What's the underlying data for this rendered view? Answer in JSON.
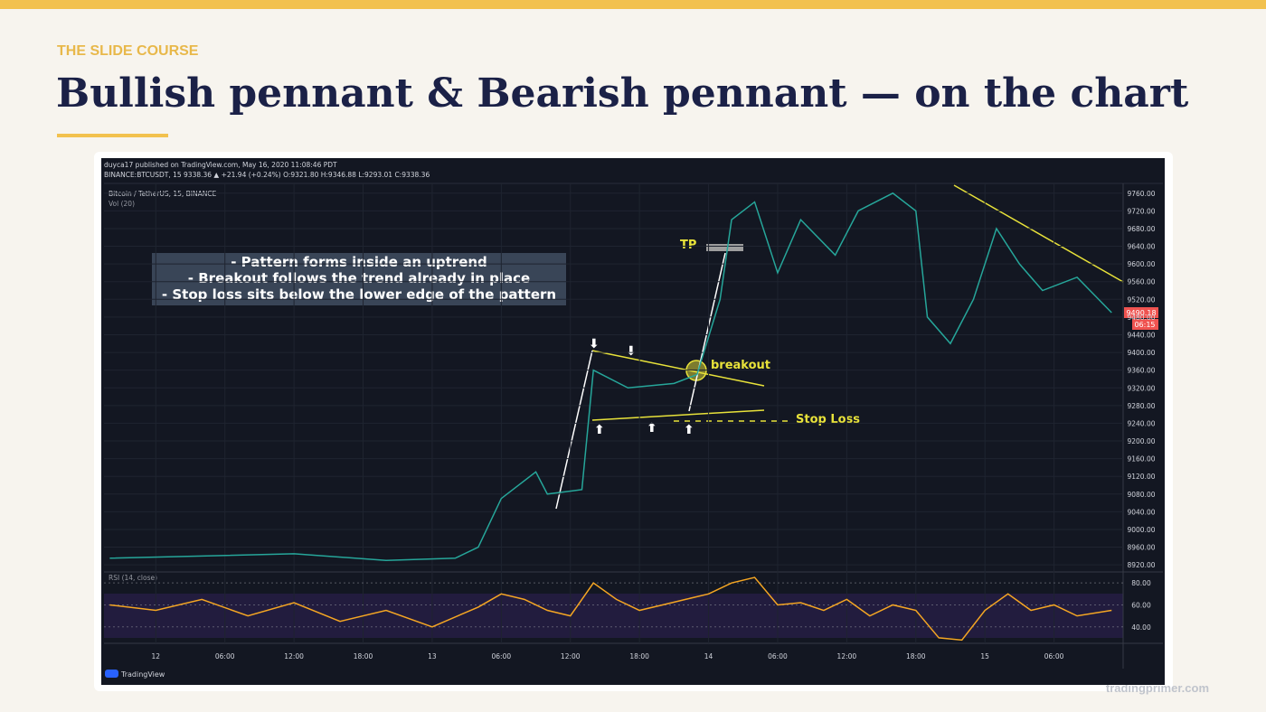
{
  "header": {
    "kicker": "THE SLIDE COURSE",
    "title": "Bullish pennant & Bearish pennant — on the chart"
  },
  "footer": "tradingprimer.com",
  "screenshot": {
    "published": "duyca17 published on TradingView.com, May 16, 2020 11:08:46 PDT",
    "quote": "BINANCE:BTCUSDT, 15  9338.36 ▲ +21.94 (+0.24%) O:9321.80 H:9346.88 L:9293.01 C:9338.36",
    "symbol": "Bitcoin / TetherUS, 15, BINANCE",
    "volume_label": "Vol (20)",
    "rsi_label": "RSI (14, close)",
    "brand": "TradingView",
    "last_price": "9490.18",
    "countdown": "06:15",
    "notes": [
      "- Pattern forms inside an uptrend",
      "- Breakout follows the trend already in place",
      "- Stop loss sits below the lower edge of the pattern"
    ],
    "tp": "TP",
    "breakout": "breakout",
    "stop_loss": "Stop Loss"
  },
  "chart_data": [
    {
      "type": "line",
      "color": "#26a69a",
      "grid": true,
      "x": [
        -4,
        4,
        12,
        20,
        26,
        28,
        30,
        33,
        34,
        37,
        38,
        41,
        45,
        47,
        49,
        50,
        52,
        54,
        56,
        59,
        61,
        64,
        66,
        67,
        69,
        71,
        73,
        75,
        77,
        80,
        83
      ],
      "values": [
        8935,
        8940,
        8945,
        8930,
        8935,
        8960,
        9070,
        9130,
        9080,
        9090,
        9360,
        9320,
        9330,
        9350,
        9520,
        9700,
        9740,
        9580,
        9700,
        9620,
        9720,
        9760,
        9720,
        9480,
        9420,
        9520,
        9680,
        9600,
        9540,
        9570,
        9490
      ],
      "xlim": [
        -4.5,
        84
      ],
      "ylim": [
        8906,
        9782
      ],
      "xticks": [
        {
          "value": 0,
          "label": "12"
        },
        {
          "value": 6,
          "label": "06:00"
        },
        {
          "value": 12,
          "label": "12:00"
        },
        {
          "value": 18,
          "label": "18:00"
        },
        {
          "value": 24,
          "label": "13"
        },
        {
          "value": 30,
          "label": "06:00"
        },
        {
          "value": 36,
          "label": "12:00"
        },
        {
          "value": 42,
          "label": "18:00"
        },
        {
          "value": 48,
          "label": "14"
        },
        {
          "value": 54,
          "label": "06:00"
        },
        {
          "value": 60,
          "label": "12:00"
        },
        {
          "value": 66,
          "label": "18:00"
        },
        {
          "value": 72,
          "label": "15"
        },
        {
          "value": 78,
          "label": "06:00"
        }
      ],
      "yticks": [
        {
          "value": 9760,
          "label": "9760.00"
        },
        {
          "value": 9720,
          "label": "9720.00"
        },
        {
          "value": 9680,
          "label": "9680.00"
        },
        {
          "value": 9640,
          "label": "9640.00"
        },
        {
          "value": 9600,
          "label": "9600.00"
        },
        {
          "value": 9560,
          "label": "9560.00"
        },
        {
          "value": 9520,
          "label": "9520.00"
        },
        {
          "value": 9480,
          "label": "9480.00"
        },
        {
          "value": 9440,
          "label": "9440.00"
        },
        {
          "value": 9400,
          "label": "9400.00"
        },
        {
          "value": 9360,
          "label": "9360.00"
        },
        {
          "value": 9320,
          "label": "9320.00"
        },
        {
          "value": 9280,
          "label": "9280.00"
        },
        {
          "value": 9240,
          "label": "9240.00"
        },
        {
          "value": 9200,
          "label": "9200.00"
        },
        {
          "value": 9160,
          "label": "9160.00"
        },
        {
          "value": 9120,
          "label": "9120.00"
        },
        {
          "value": 9080,
          "label": "9080.00"
        },
        {
          "value": 9040,
          "label": "9040.00"
        },
        {
          "value": 9000,
          "label": "9000.00"
        },
        {
          "value": 8960,
          "label": "8960.00"
        },
        {
          "value": 8920,
          "label": "8920.00"
        }
      ]
    },
    {
      "type": "line",
      "color": "#f5a623",
      "x": [
        -4,
        0,
        4,
        8,
        12,
        16,
        20,
        24,
        28,
        30,
        32,
        34,
        36,
        38,
        40,
        42,
        44,
        46,
        48,
        50,
        52,
        54,
        56,
        58,
        60,
        62,
        64,
        66,
        68,
        70,
        72,
        74,
        76,
        78,
        80,
        83
      ],
      "values": [
        60,
        55,
        65,
        50,
        62,
        45,
        55,
        40,
        58,
        70,
        65,
        55,
        50,
        80,
        65,
        55,
        60,
        65,
        70,
        80,
        85,
        60,
        62,
        55,
        65,
        50,
        60,
        55,
        30,
        28,
        55,
        70,
        55,
        60,
        50,
        55
      ],
      "xlim": [
        -4.5,
        84
      ],
      "ylim": [
        25,
        90
      ],
      "yticks": [
        {
          "value": 80,
          "label": "80.00"
        },
        {
          "value": 60,
          "label": "60.00"
        },
        {
          "value": 40,
          "label": "40.00"
        }
      ]
    }
  ]
}
